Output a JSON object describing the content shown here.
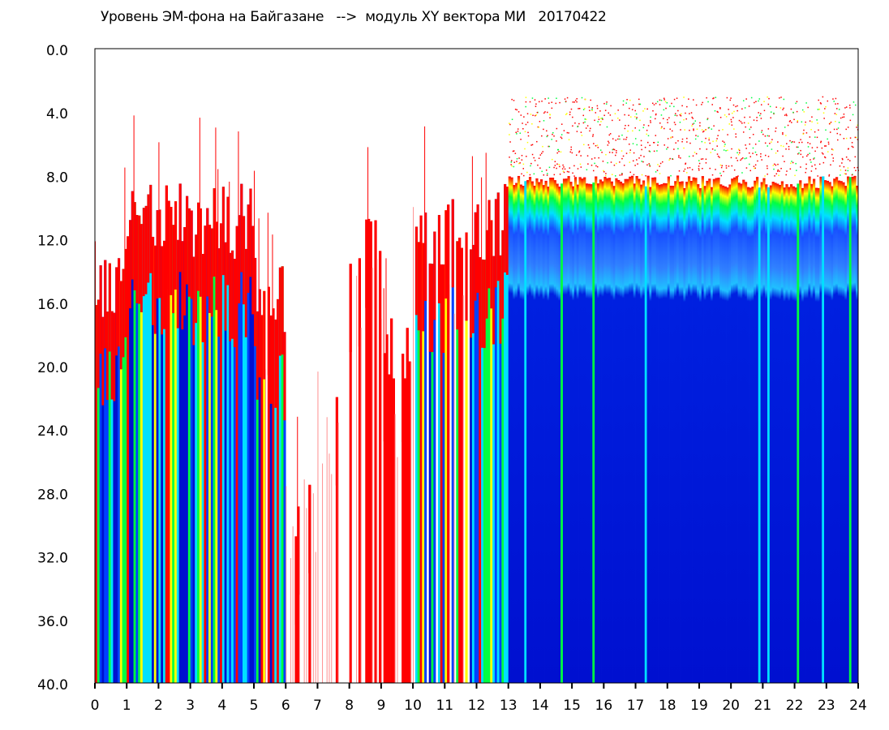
{
  "chart_data": {
    "type": "heatmap",
    "title": "Уровень ЭМ-фона на Байгазане   -->  модуль XY вектора МИ   20170422",
    "xlabel": "",
    "ylabel": "",
    "xlim": [
      0,
      24
    ],
    "ylim": [
      0,
      40
    ],
    "y_inverted": true,
    "x_ticks": [
      "0",
      "1",
      "2",
      "3",
      "4",
      "5",
      "6",
      "7",
      "8",
      "9",
      "10",
      "11",
      "12",
      "13",
      "14",
      "15",
      "16",
      "17",
      "18",
      "19",
      "20",
      "21",
      "22",
      "23",
      "24"
    ],
    "y_ticks": [
      "0.0",
      "4.0",
      "8.0",
      "12.0",
      "16.0",
      "20.0",
      "24.0",
      "28.0",
      "32.0",
      "36.0",
      "40.0"
    ],
    "hourly_signal_top": [
      12,
      8.5,
      8.5,
      8.5,
      8.5,
      13,
      26,
      20,
      9,
      16,
      9,
      9,
      8.5,
      8,
      8,
      8,
      8,
      8,
      8,
      8,
      8,
      8,
      8,
      8
    ],
    "hourly_density": [
      1,
      1,
      1,
      1,
      1,
      0.9,
      0.25,
      0.2,
      0.5,
      0.6,
      0.9,
      0.9,
      1,
      1,
      1,
      1,
      1,
      1,
      1,
      1,
      1,
      1,
      1,
      1
    ],
    "colorscale": [
      "#0010d0",
      "#0040ff",
      "#00e0ff",
      "#00ff40",
      "#ffff00",
      "#ff0000"
    ],
    "grid": false
  }
}
